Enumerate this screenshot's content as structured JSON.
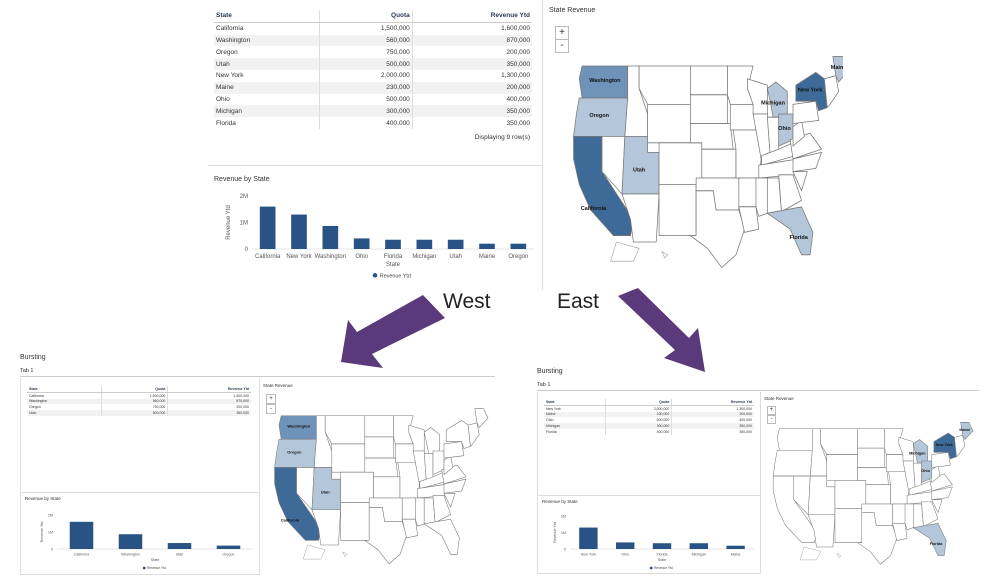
{
  "top": {
    "table": {
      "headers": [
        "State",
        "Quota",
        "Revenue Ytd"
      ],
      "rows": [
        [
          "California",
          "1,500,000",
          "1,600,000"
        ],
        [
          "Washington",
          "560,000",
          "870,000"
        ],
        [
          "Oregon",
          "750,000",
          "200,000"
        ],
        [
          "Utah",
          "500,000",
          "350,000"
        ],
        [
          "New York",
          "2,000,000",
          "1,300,000"
        ],
        [
          "Maine",
          "230,000",
          "200,000"
        ],
        [
          "Ohio",
          "500,000",
          "400,000"
        ],
        [
          "Michigan",
          "300,000",
          "350,000"
        ],
        [
          "Florida",
          "400,000",
          "350,000"
        ]
      ],
      "footer": "Displaying 9 row(s)"
    },
    "map_title": "State Revenue",
    "zoom_in": "+",
    "zoom_out": "-",
    "map_labels": [
      "Washington",
      "Oregon",
      "California",
      "Utah",
      "Michigan",
      "Ohio",
      "New York",
      "Maine",
      "Florida"
    ]
  },
  "chart_data": [
    {
      "type": "bar",
      "title": "Revenue by State",
      "xlabel": "State",
      "ylabel": "Revenue Ytd",
      "categories": [
        "California",
        "New York",
        "Washington",
        "Ohio",
        "Florida",
        "Michigan",
        "Utah",
        "Maine",
        "Oregon"
      ],
      "values": [
        1600000,
        1300000,
        870000,
        400000,
        350000,
        350000,
        350000,
        200000,
        200000
      ],
      "yticks": [
        "0",
        "1M",
        "2M"
      ],
      "ylim": [
        0,
        2000000
      ],
      "legend": [
        "Revenue Ytd"
      ],
      "legend_position": "bottom"
    },
    {
      "type": "bar",
      "title": "Revenue by State",
      "xlabel": "State",
      "ylabel": "Revenue Ytd",
      "categories": [
        "California",
        "Washington",
        "Utah",
        "Oregon"
      ],
      "values": [
        1600000,
        870000,
        350000,
        200000
      ],
      "yticks": [
        "0",
        "1M",
        "2M"
      ],
      "ylim": [
        0,
        2000000
      ],
      "legend": [
        "Revenue Ytd"
      ],
      "legend_position": "bottom"
    },
    {
      "type": "bar",
      "title": "Revenue by State",
      "xlabel": "State",
      "ylabel": "Revenue Ytd",
      "categories": [
        "New York",
        "Ohio",
        "Florida",
        "Michigan",
        "Maine"
      ],
      "values": [
        1300000,
        400000,
        350000,
        350000,
        200000
      ],
      "yticks": [
        "0",
        "1M",
        "2M"
      ],
      "ylim": [
        0,
        2000000
      ],
      "legend": [
        "Revenue Ytd"
      ],
      "legend_position": "bottom"
    }
  ],
  "arrows": {
    "west": "West",
    "east": "East"
  },
  "west": {
    "heading": "Bursting",
    "tab": "Tab 1",
    "table": {
      "headers": [
        "State",
        "Quota",
        "Revenue Ytd"
      ],
      "rows": [
        [
          "California",
          "1,500,000",
          "1,600,000"
        ],
        [
          "Washington",
          "560,000",
          "870,000"
        ],
        [
          "Oregon",
          "750,000",
          "200,000"
        ],
        [
          "Utah",
          "500,000",
          "350,000"
        ]
      ]
    },
    "map_title": "State Revenue",
    "map_labels": [
      "Washington",
      "Oregon",
      "California",
      "Utah"
    ]
  },
  "east": {
    "heading": "Bursting",
    "tab": "Tab 1",
    "table": {
      "headers": [
        "State",
        "Quota",
        "Revenue Ytd"
      ],
      "rows": [
        [
          "New York",
          "2,000,000",
          "1,300,000"
        ],
        [
          "Maine",
          "230,000",
          "200,000"
        ],
        [
          "Ohio",
          "500,000",
          "400,000"
        ],
        [
          "Michigan",
          "300,000",
          "350,000"
        ],
        [
          "Florida",
          "400,000",
          "350,000"
        ]
      ]
    },
    "map_title": "State Revenue",
    "map_labels": [
      "Michigan",
      "Ohio",
      "New York",
      "Maine",
      "Florida"
    ]
  },
  "colors": {
    "bar": "#2a5385",
    "arrow": "#5a3a7a",
    "state_dark": "#3e6a98",
    "state_mid": "#6f92b8",
    "state_light": "#b4c6d9",
    "state_none": "#ffffff"
  }
}
